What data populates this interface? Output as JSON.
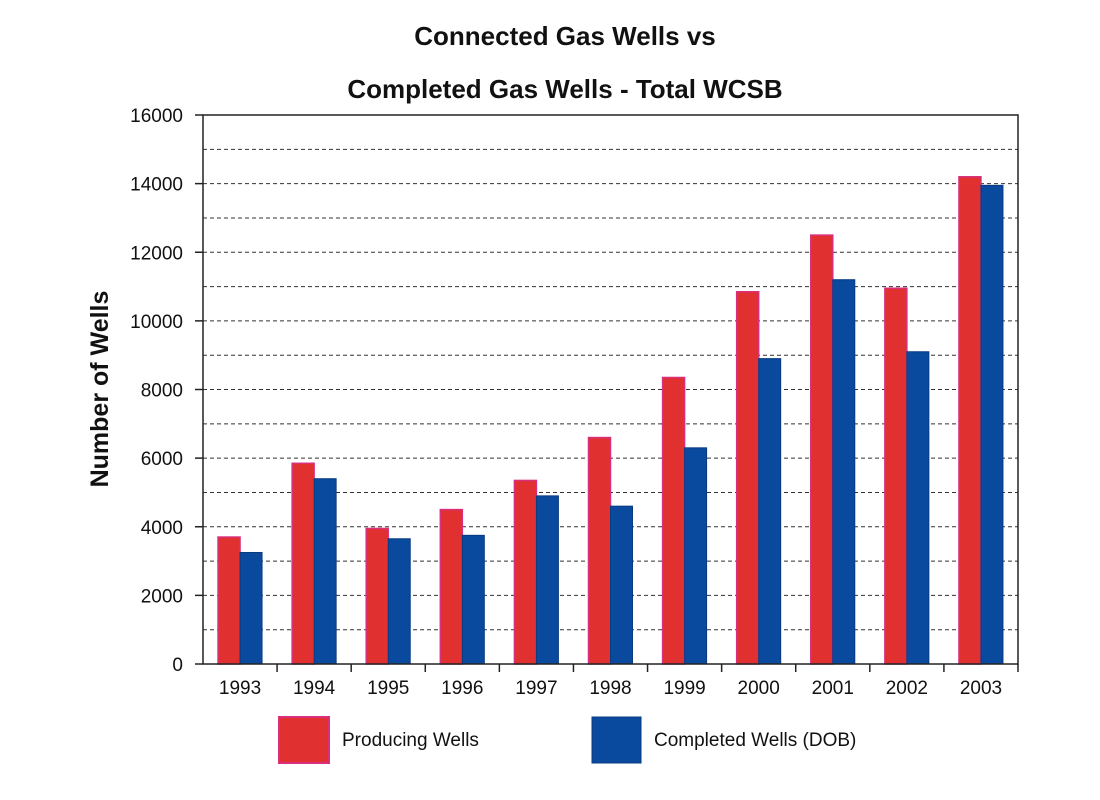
{
  "chart_data": {
    "type": "bar",
    "title_line1": "Connected Gas Wells vs",
    "title_line2": "Completed Gas Wells - Total WCSB",
    "xlabel": "",
    "ylabel": "Number of Wells",
    "ylim": [
      0,
      16000
    ],
    "y_ticks": [
      "0",
      "2000",
      "4000",
      "6000",
      "8000",
      "10000",
      "12000",
      "14000",
      "16000"
    ],
    "grid": true,
    "categories": [
      "1993",
      "1994",
      "1995",
      "1996",
      "1997",
      "1998",
      "1999",
      "2000",
      "2001",
      "2002",
      "2003"
    ],
    "series": [
      {
        "name": "Producing Wells",
        "color": "#e03030",
        "values": [
          3700,
          5850,
          3950,
          4500,
          5350,
          6600,
          8350,
          10850,
          12500,
          10950,
          14200
        ]
      },
      {
        "name": "Completed Wells (DOB)",
        "color": "#0a4a9e",
        "values": [
          3250,
          5400,
          3650,
          3750,
          4900,
          4600,
          6300,
          8900,
          11200,
          9100,
          13950
        ]
      }
    ],
    "legend_position": "bottom"
  }
}
